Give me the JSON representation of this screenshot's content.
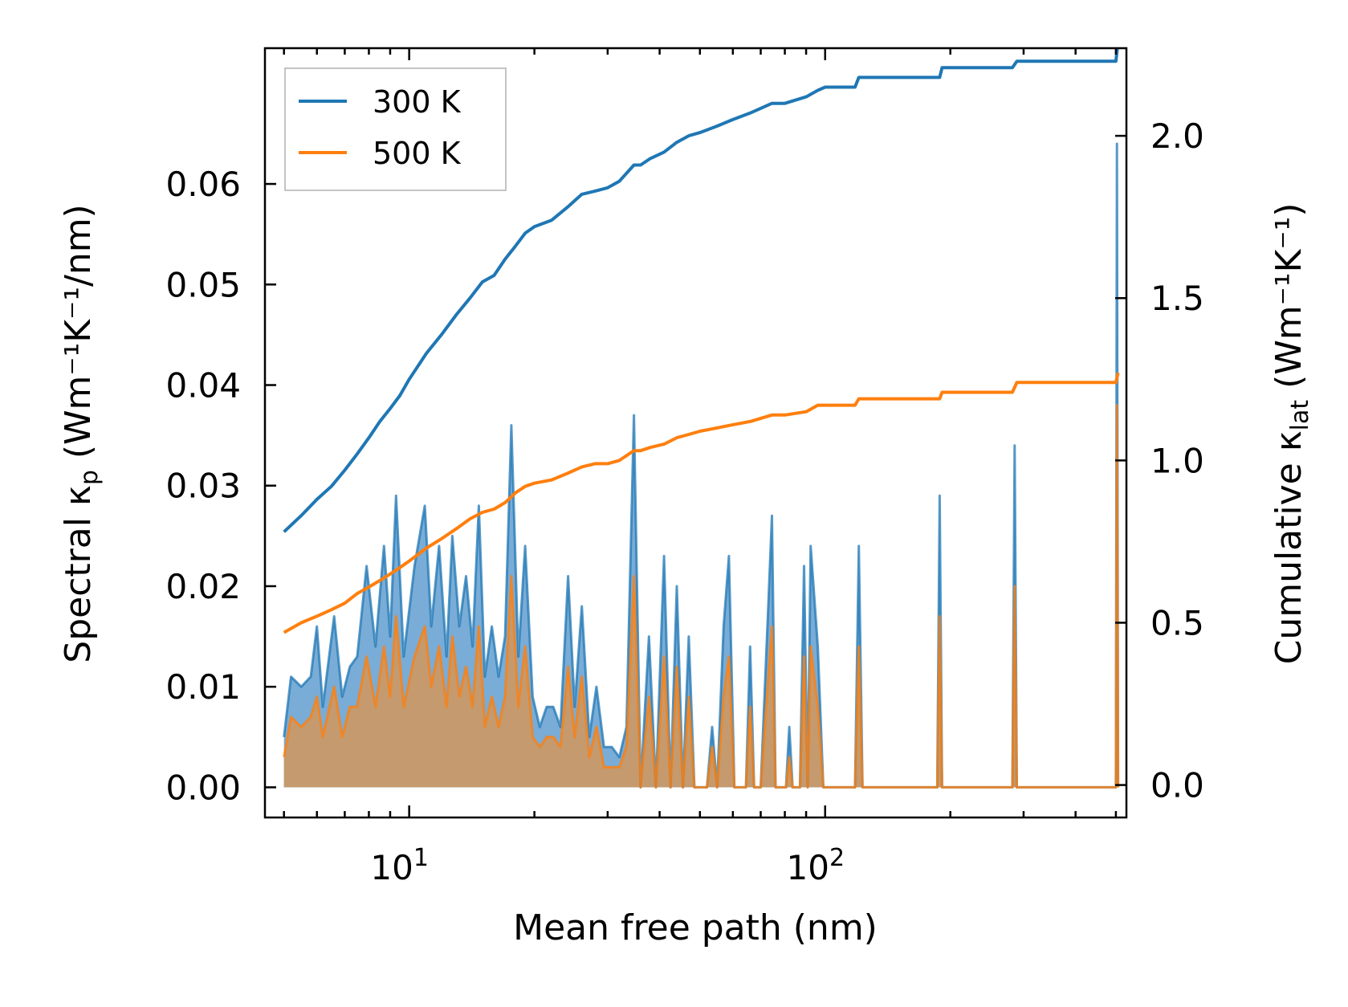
{
  "chart_data": {
    "type": "line",
    "x_scale": "log",
    "xlim": [
      4.5,
      530
    ],
    "ylim_left": [
      -0.003,
      0.0735
    ],
    "ylim_right": [
      -0.1,
      2.27
    ],
    "xlabel": "Mean free path (nm)",
    "ylabel_left": {
      "text": "Spectral κ",
      "sub": "p",
      "units": " (Wm⁻¹K⁻¹/nm)"
    },
    "ylabel_right": {
      "text": "Cumulative κ",
      "sub": "lat",
      "units": " (Wm⁻¹K⁻¹)"
    },
    "x_ticks": [
      {
        "value": 10,
        "base": "10",
        "exp": "1"
      },
      {
        "value": 100,
        "base": "10",
        "exp": "2"
      }
    ],
    "y_ticks_left": [
      "0.00",
      "0.01",
      "0.02",
      "0.03",
      "0.04",
      "0.05",
      "0.06"
    ],
    "y_ticks_right": [
      "0.0",
      "0.5",
      "1.0",
      "1.5",
      "2.0"
    ],
    "legend": {
      "position": "top-left",
      "entries": [
        "300 K",
        "500 K"
      ]
    },
    "colors": {
      "t300": "#1f77b4",
      "t500": "#ff7f0e",
      "fill300": "#79acd6",
      "fill500": "#c49a6e"
    },
    "series": [
      {
        "name": "300 K",
        "spectral": [
          [
            5.0,
            0.005
          ],
          [
            5.2,
            0.011
          ],
          [
            5.5,
            0.01
          ],
          [
            5.8,
            0.011
          ],
          [
            6.0,
            0.016
          ],
          [
            6.2,
            0.008
          ],
          [
            6.6,
            0.017
          ],
          [
            6.9,
            0.009
          ],
          [
            7.2,
            0.012
          ],
          [
            7.5,
            0.013
          ],
          [
            7.9,
            0.022
          ],
          [
            8.3,
            0.014
          ],
          [
            8.7,
            0.024
          ],
          [
            9.0,
            0.015
          ],
          [
            9.3,
            0.029
          ],
          [
            9.7,
            0.013
          ],
          [
            10.3,
            0.022
          ],
          [
            10.9,
            0.028
          ],
          [
            11.3,
            0.016
          ],
          [
            11.8,
            0.024
          ],
          [
            12.3,
            0.013
          ],
          [
            12.7,
            0.025
          ],
          [
            13.2,
            0.016
          ],
          [
            13.7,
            0.021
          ],
          [
            14.2,
            0.014
          ],
          [
            14.7,
            0.028
          ],
          [
            15.2,
            0.011
          ],
          [
            15.8,
            0.016
          ],
          [
            16.4,
            0.011
          ],
          [
            17.0,
            0.015
          ],
          [
            17.6,
            0.036
          ],
          [
            18.3,
            0.013
          ],
          [
            19.0,
            0.024
          ],
          [
            19.8,
            0.009
          ],
          [
            20.6,
            0.006
          ],
          [
            21.4,
            0.008
          ],
          [
            22.2,
            0.008
          ],
          [
            23.1,
            0.006
          ],
          [
            24.1,
            0.021
          ],
          [
            25.0,
            0.008
          ],
          [
            26.0,
            0.018
          ],
          [
            27.1,
            0.005
          ],
          [
            28.2,
            0.01
          ],
          [
            29.4,
            0.004
          ],
          [
            30.7,
            0.004
          ],
          [
            32.0,
            0.003
          ],
          [
            33.3,
            0.006
          ],
          [
            34.7,
            0.037
          ],
          [
            36.0,
            0.0
          ],
          [
            37.7,
            0.015
          ],
          [
            39.2,
            0.0
          ],
          [
            41.0,
            0.023
          ],
          [
            42.5,
            0.0
          ],
          [
            44.0,
            0.02
          ],
          [
            45.5,
            0.0
          ],
          [
            47.0,
            0.015
          ],
          [
            48.5,
            0.0
          ],
          [
            52.0,
            0.0
          ],
          [
            53.5,
            0.006
          ],
          [
            55.0,
            0.0
          ],
          [
            57.0,
            0.016
          ],
          [
            58.7,
            0.023
          ],
          [
            60.5,
            0.0
          ],
          [
            64.5,
            0.0
          ],
          [
            66.0,
            0.014
          ],
          [
            67.5,
            0.0
          ],
          [
            70.0,
            0.0
          ],
          [
            73.0,
            0.018
          ],
          [
            74.5,
            0.027
          ],
          [
            76.0,
            0.0
          ],
          [
            80.5,
            0.0
          ],
          [
            82.0,
            0.006
          ],
          [
            83.5,
            0.0
          ],
          [
            87.0,
            0.0
          ],
          [
            89.0,
            0.022
          ],
          [
            90.8,
            0.0
          ],
          [
            92.3,
            0.024
          ],
          [
            96.0,
            0.014
          ],
          [
            99.0,
            0.0
          ],
          [
            118.0,
            0.0
          ],
          [
            120.5,
            0.024
          ],
          [
            123.0,
            0.0
          ],
          [
            186.0,
            0.0
          ],
          [
            188.5,
            0.029
          ],
          [
            191.0,
            0.0
          ],
          [
            282.0,
            0.0
          ],
          [
            285.5,
            0.034
          ],
          [
            289.0,
            0.0
          ],
          [
            500.0,
            0.0
          ],
          [
            503.0,
            0.064
          ],
          [
            506.0,
            0.0
          ]
        ],
        "cumulative": [
          [
            5.0,
            0.78
          ],
          [
            5.5,
            0.83
          ],
          [
            6.0,
            0.88
          ],
          [
            6.5,
            0.92
          ],
          [
            7.0,
            0.97
          ],
          [
            7.5,
            1.02
          ],
          [
            8.0,
            1.07
          ],
          [
            8.5,
            1.12
          ],
          [
            9.0,
            1.16
          ],
          [
            9.5,
            1.2
          ],
          [
            10.0,
            1.25
          ],
          [
            11.0,
            1.33
          ],
          [
            12.0,
            1.39
          ],
          [
            13.0,
            1.45
          ],
          [
            14.0,
            1.5
          ],
          [
            15.0,
            1.55
          ],
          [
            16.0,
            1.57
          ],
          [
            17.0,
            1.62
          ],
          [
            18.0,
            1.66
          ],
          [
            19.0,
            1.7
          ],
          [
            20.0,
            1.72
          ],
          [
            22.0,
            1.74
          ],
          [
            24.0,
            1.78
          ],
          [
            26.0,
            1.82
          ],
          [
            28.0,
            1.83
          ],
          [
            30.0,
            1.84
          ],
          [
            32.0,
            1.86
          ],
          [
            34.7,
            1.91
          ],
          [
            36.0,
            1.91
          ],
          [
            38.0,
            1.93
          ],
          [
            41.0,
            1.95
          ],
          [
            44.0,
            1.98
          ],
          [
            47.0,
            2.0
          ],
          [
            50.0,
            2.01
          ],
          [
            55.0,
            2.03
          ],
          [
            60.0,
            2.05
          ],
          [
            66.0,
            2.07
          ],
          [
            74.5,
            2.1
          ],
          [
            80.0,
            2.1
          ],
          [
            90.0,
            2.12
          ],
          [
            96.0,
            2.14
          ],
          [
            100.0,
            2.15
          ],
          [
            118.0,
            2.15
          ],
          [
            120.5,
            2.18
          ],
          [
            150.0,
            2.18
          ],
          [
            188.5,
            2.18
          ],
          [
            191.0,
            2.21
          ],
          [
            282.0,
            2.21
          ],
          [
            289.0,
            2.23
          ],
          [
            500.0,
            2.23
          ],
          [
            506.0,
            2.29
          ]
        ]
      },
      {
        "name": "500 K",
        "spectral": [
          [
            5.0,
            0.003
          ],
          [
            5.2,
            0.007
          ],
          [
            5.5,
            0.006
          ],
          [
            5.8,
            0.007
          ],
          [
            6.0,
            0.009
          ],
          [
            6.2,
            0.005
          ],
          [
            6.6,
            0.01
          ],
          [
            6.9,
            0.005
          ],
          [
            7.2,
            0.008
          ],
          [
            7.5,
            0.008
          ],
          [
            7.9,
            0.013
          ],
          [
            8.3,
            0.008
          ],
          [
            8.7,
            0.014
          ],
          [
            9.0,
            0.009
          ],
          [
            9.3,
            0.017
          ],
          [
            9.7,
            0.008
          ],
          [
            10.3,
            0.013
          ],
          [
            10.9,
            0.016
          ],
          [
            11.3,
            0.01
          ],
          [
            11.8,
            0.014
          ],
          [
            12.3,
            0.008
          ],
          [
            12.7,
            0.015
          ],
          [
            13.2,
            0.009
          ],
          [
            13.7,
            0.012
          ],
          [
            14.2,
            0.008
          ],
          [
            14.7,
            0.016
          ],
          [
            15.2,
            0.006
          ],
          [
            15.8,
            0.009
          ],
          [
            16.4,
            0.006
          ],
          [
            17.0,
            0.009
          ],
          [
            17.6,
            0.021
          ],
          [
            18.3,
            0.008
          ],
          [
            19.0,
            0.014
          ],
          [
            19.8,
            0.005
          ],
          [
            20.6,
            0.004
          ],
          [
            21.4,
            0.005
          ],
          [
            22.2,
            0.005
          ],
          [
            23.1,
            0.004
          ],
          [
            24.1,
            0.012
          ],
          [
            25.0,
            0.005
          ],
          [
            26.0,
            0.011
          ],
          [
            27.1,
            0.003
          ],
          [
            28.2,
            0.006
          ],
          [
            29.4,
            0.002
          ],
          [
            30.7,
            0.002
          ],
          [
            32.0,
            0.002
          ],
          [
            33.3,
            0.004
          ],
          [
            34.7,
            0.021
          ],
          [
            36.0,
            0.0
          ],
          [
            37.7,
            0.009
          ],
          [
            39.2,
            0.0
          ],
          [
            41.0,
            0.013
          ],
          [
            42.5,
            0.0
          ],
          [
            44.0,
            0.012
          ],
          [
            45.5,
            0.0
          ],
          [
            47.0,
            0.009
          ],
          [
            48.5,
            0.0
          ],
          [
            52.0,
            0.0
          ],
          [
            53.5,
            0.004
          ],
          [
            55.0,
            0.0
          ],
          [
            57.0,
            0.009
          ],
          [
            58.7,
            0.013
          ],
          [
            60.5,
            0.0
          ],
          [
            64.5,
            0.0
          ],
          [
            66.0,
            0.008
          ],
          [
            67.5,
            0.0
          ],
          [
            70.0,
            0.0
          ],
          [
            73.0,
            0.011
          ],
          [
            74.5,
            0.016
          ],
          [
            76.0,
            0.0
          ],
          [
            80.5,
            0.0
          ],
          [
            82.0,
            0.003
          ],
          [
            83.5,
            0.0
          ],
          [
            87.0,
            0.0
          ],
          [
            89.0,
            0.013
          ],
          [
            90.8,
            0.0
          ],
          [
            92.3,
            0.014
          ],
          [
            96.0,
            0.008
          ],
          [
            99.0,
            0.0
          ],
          [
            118.0,
            0.0
          ],
          [
            120.5,
            0.014
          ],
          [
            123.0,
            0.0
          ],
          [
            186.0,
            0.0
          ],
          [
            188.5,
            0.017
          ],
          [
            191.0,
            0.0
          ],
          [
            282.0,
            0.0
          ],
          [
            285.5,
            0.02
          ],
          [
            289.0,
            0.0
          ],
          [
            500.0,
            0.0
          ],
          [
            503.0,
            0.038
          ],
          [
            506.0,
            0.0
          ]
        ],
        "cumulative": [
          [
            5.0,
            0.47
          ],
          [
            5.5,
            0.5
          ],
          [
            6.0,
            0.52
          ],
          [
            6.5,
            0.54
          ],
          [
            7.0,
            0.56
          ],
          [
            7.5,
            0.59
          ],
          [
            8.0,
            0.61
          ],
          [
            8.5,
            0.63
          ],
          [
            9.0,
            0.65
          ],
          [
            9.5,
            0.67
          ],
          [
            10.0,
            0.69
          ],
          [
            11.0,
            0.73
          ],
          [
            12.0,
            0.76
          ],
          [
            13.0,
            0.79
          ],
          [
            14.0,
            0.82
          ],
          [
            15.0,
            0.84
          ],
          [
            16.0,
            0.85
          ],
          [
            17.0,
            0.87
          ],
          [
            18.0,
            0.9
          ],
          [
            19.0,
            0.92
          ],
          [
            20.0,
            0.93
          ],
          [
            22.0,
            0.94
          ],
          [
            24.0,
            0.96
          ],
          [
            26.0,
            0.98
          ],
          [
            28.0,
            0.99
          ],
          [
            30.0,
            0.99
          ],
          [
            32.0,
            1.0
          ],
          [
            34.7,
            1.03
          ],
          [
            36.0,
            1.03
          ],
          [
            38.0,
            1.04
          ],
          [
            41.0,
            1.05
          ],
          [
            44.0,
            1.07
          ],
          [
            47.0,
            1.08
          ],
          [
            50.0,
            1.09
          ],
          [
            55.0,
            1.1
          ],
          [
            60.0,
            1.11
          ],
          [
            66.0,
            1.12
          ],
          [
            74.5,
            1.14
          ],
          [
            80.0,
            1.14
          ],
          [
            90.0,
            1.15
          ],
          [
            96.0,
            1.17
          ],
          [
            100.0,
            1.17
          ],
          [
            118.0,
            1.17
          ],
          [
            120.5,
            1.19
          ],
          [
            150.0,
            1.19
          ],
          [
            188.5,
            1.19
          ],
          [
            191.0,
            1.21
          ],
          [
            282.0,
            1.21
          ],
          [
            289.0,
            1.24
          ],
          [
            500.0,
            1.24
          ],
          [
            506.0,
            1.27
          ]
        ]
      }
    ]
  }
}
